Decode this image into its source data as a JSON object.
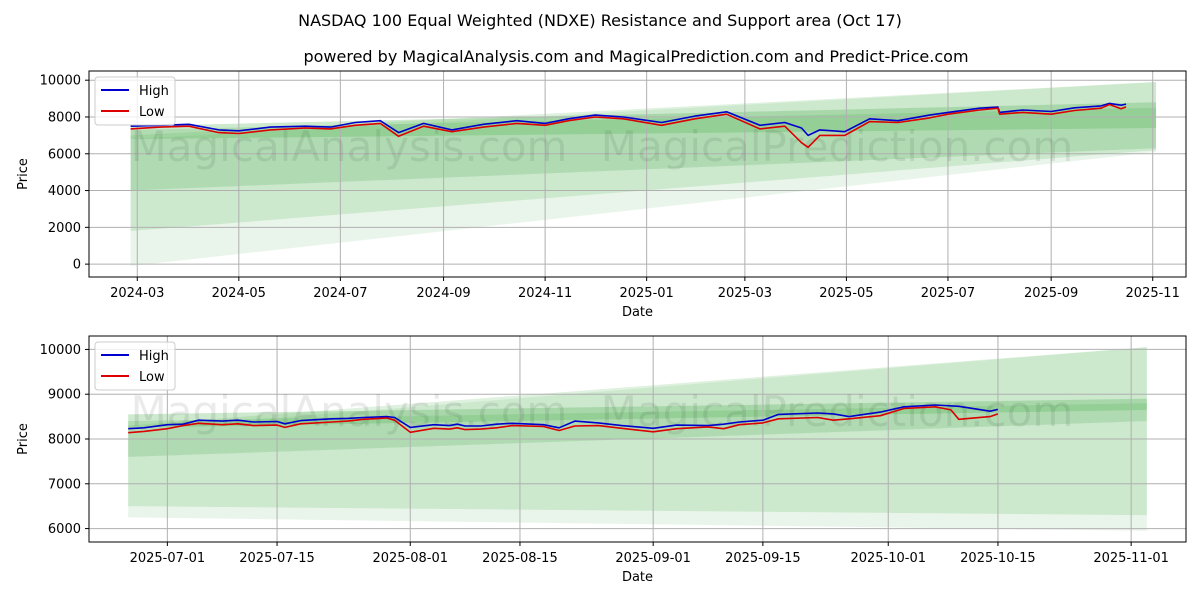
{
  "figure": {
    "title": "NASDAQ 100 Equal Weighted (NDXE) Resistance and Support area (Oct 17)",
    "subtitle": "powered by MagicalAnalysis.com and MagicalPrediction.com and Predict-Price.com",
    "watermarks": [
      "MagicalAnalysis.com",
      "MagicalPrediction.com"
    ]
  },
  "colors": {
    "high": "#0000cc",
    "low": "#dd0000",
    "band": "#4caf50",
    "grid": "#b0b0b0"
  },
  "chart_data": [
    {
      "type": "line",
      "xlabel": "Date",
      "ylabel": "Price",
      "xlim": [
        "2024-02-01",
        "2025-11-21"
      ],
      "ylim": [
        -700,
        10500
      ],
      "grid": true,
      "legend": "top-left",
      "x_ticks": [
        "2024-03",
        "2024-05",
        "2024-07",
        "2024-09",
        "2024-11",
        "2025-01",
        "2025-03",
        "2025-05",
        "2025-07",
        "2025-09",
        "2025-11"
      ],
      "y_ticks": [
        0,
        2000,
        4000,
        6000,
        8000,
        10000
      ],
      "series": [
        {
          "name": "High",
          "x": [
            "2024-02-26",
            "2024-03-15",
            "2024-04-01",
            "2024-04-19",
            "2024-05-01",
            "2024-05-20",
            "2024-06-10",
            "2024-06-25",
            "2024-07-10",
            "2024-07-25",
            "2024-08-05",
            "2024-08-20",
            "2024-09-06",
            "2024-09-25",
            "2024-10-15",
            "2024-11-01",
            "2024-11-15",
            "2024-12-01",
            "2024-12-18",
            "2025-01-10",
            "2025-01-30",
            "2025-02-18",
            "2025-03-10",
            "2025-03-25",
            "2025-04-04",
            "2025-04-08",
            "2025-04-15",
            "2025-04-30",
            "2025-05-15",
            "2025-06-01",
            "2025-06-20",
            "2025-07-01",
            "2025-07-20",
            "2025-07-31",
            "2025-08-01",
            "2025-08-15",
            "2025-09-01",
            "2025-09-15",
            "2025-10-01",
            "2025-10-06",
            "2025-10-13",
            "2025-10-16"
          ],
          "values": [
            7500,
            7550,
            7600,
            7300,
            7250,
            7450,
            7500,
            7450,
            7700,
            7800,
            7150,
            7650,
            7300,
            7600,
            7800,
            7650,
            7900,
            8100,
            8000,
            7700,
            8050,
            8280,
            7550,
            7700,
            7400,
            7000,
            7300,
            7200,
            7900,
            7800,
            8100,
            8250,
            8480,
            8540,
            8250,
            8380,
            8300,
            8500,
            8600,
            8740,
            8640,
            8700
          ]
        },
        {
          "name": "Low",
          "x": [
            "2024-02-26",
            "2024-03-15",
            "2024-04-01",
            "2024-04-19",
            "2024-05-01",
            "2024-05-20",
            "2024-06-10",
            "2024-06-25",
            "2024-07-10",
            "2024-07-25",
            "2024-08-05",
            "2024-08-20",
            "2024-09-06",
            "2024-09-25",
            "2024-10-15",
            "2024-11-01",
            "2024-11-15",
            "2024-12-01",
            "2024-12-18",
            "2025-01-10",
            "2025-01-30",
            "2025-02-18",
            "2025-03-10",
            "2025-03-25",
            "2025-04-04",
            "2025-04-08",
            "2025-04-15",
            "2025-04-30",
            "2025-05-15",
            "2025-06-01",
            "2025-06-20",
            "2025-07-01",
            "2025-07-20",
            "2025-07-31",
            "2025-08-01",
            "2025-08-15",
            "2025-09-01",
            "2025-09-15",
            "2025-10-01",
            "2025-10-06",
            "2025-10-13",
            "2025-10-16"
          ],
          "values": [
            7350,
            7450,
            7500,
            7150,
            7100,
            7300,
            7400,
            7350,
            7550,
            7650,
            6950,
            7500,
            7200,
            7450,
            7650,
            7550,
            7800,
            8000,
            7900,
            7550,
            7900,
            8150,
            7350,
            7500,
            6600,
            6350,
            7000,
            7000,
            7750,
            7700,
            7950,
            8150,
            8380,
            8480,
            8150,
            8250,
            8150,
            8350,
            8480,
            8680,
            8450,
            8550
          ]
        }
      ],
      "bands": [
        {
          "name": "band-1",
          "x": [
            "2024-02-26",
            "2025-11-03"
          ],
          "upper": [
            7500,
            8800
          ],
          "lower": [
            6800,
            7400
          ]
        },
        {
          "name": "band-2",
          "x": [
            "2024-02-26",
            "2025-11-03"
          ],
          "upper": [
            7300,
            8500
          ],
          "lower": [
            4000,
            6300
          ]
        },
        {
          "name": "band-3",
          "x": [
            "2024-02-26",
            "2025-11-03"
          ],
          "upper": [
            7000,
            9900
          ],
          "lower": [
            1800,
            6200
          ]
        },
        {
          "name": "band-4",
          "x": [
            "2024-02-26",
            "2025-11-03"
          ],
          "upper": [
            6800,
            9900
          ],
          "lower": [
            -100,
            6100
          ]
        }
      ]
    },
    {
      "type": "line",
      "xlabel": "Date",
      "ylabel": "Price",
      "xlim": [
        "2025-06-21",
        "2025-11-08"
      ],
      "ylim": [
        5700,
        10300
      ],
      "grid": true,
      "legend": "top-left",
      "x_ticks": [
        "2025-07-01",
        "2025-07-15",
        "2025-08-01",
        "2025-08-15",
        "2025-09-01",
        "2025-09-15",
        "2025-10-01",
        "2025-10-15",
        "2025-11-01"
      ],
      "y_ticks": [
        6000,
        7000,
        8000,
        9000,
        10000
      ],
      "series": [
        {
          "name": "High",
          "x": [
            "2025-06-26",
            "2025-06-28",
            "2025-07-01",
            "2025-07-03",
            "2025-07-05",
            "2025-07-08",
            "2025-07-10",
            "2025-07-12",
            "2025-07-15",
            "2025-07-16",
            "2025-07-18",
            "2025-07-22",
            "2025-07-24",
            "2025-07-26",
            "2025-07-29",
            "2025-07-30",
            "2025-08-01",
            "2025-08-04",
            "2025-08-06",
            "2025-08-07",
            "2025-08-08",
            "2025-08-10",
            "2025-08-12",
            "2025-08-14",
            "2025-08-18",
            "2025-08-20",
            "2025-08-22",
            "2025-08-25",
            "2025-08-28",
            "2025-09-01",
            "2025-09-04",
            "2025-09-08",
            "2025-09-10",
            "2025-09-12",
            "2025-09-15",
            "2025-09-17",
            "2025-09-22",
            "2025-09-24",
            "2025-09-26",
            "2025-09-30",
            "2025-10-03",
            "2025-10-07",
            "2025-10-10",
            "2025-10-14",
            "2025-10-15"
          ],
          "values": [
            8230,
            8250,
            8320,
            8330,
            8420,
            8400,
            8420,
            8380,
            8390,
            8340,
            8410,
            8450,
            8460,
            8480,
            8500,
            8480,
            8260,
            8320,
            8300,
            8330,
            8290,
            8290,
            8330,
            8350,
            8320,
            8250,
            8400,
            8360,
            8300,
            8240,
            8310,
            8300,
            8330,
            8380,
            8420,
            8550,
            8580,
            8560,
            8500,
            8600,
            8720,
            8760,
            8730,
            8620,
            8660
          ]
        },
        {
          "name": "Low",
          "x": [
            "2025-06-26",
            "2025-06-28",
            "2025-07-01",
            "2025-07-03",
            "2025-07-05",
            "2025-07-08",
            "2025-07-10",
            "2025-07-12",
            "2025-07-15",
            "2025-07-16",
            "2025-07-18",
            "2025-07-22",
            "2025-07-24",
            "2025-07-26",
            "2025-07-29",
            "2025-07-30",
            "2025-08-01",
            "2025-08-04",
            "2025-08-06",
            "2025-08-07",
            "2025-08-08",
            "2025-08-10",
            "2025-08-12",
            "2025-08-14",
            "2025-08-18",
            "2025-08-20",
            "2025-08-22",
            "2025-08-25",
            "2025-08-28",
            "2025-09-01",
            "2025-09-04",
            "2025-09-08",
            "2025-09-10",
            "2025-09-12",
            "2025-09-15",
            "2025-09-17",
            "2025-09-22",
            "2025-09-24",
            "2025-09-26",
            "2025-09-30",
            "2025-10-03",
            "2025-10-07",
            "2025-10-09",
            "2025-10-10",
            "2025-10-14",
            "2025-10-15"
          ],
          "values": [
            8140,
            8170,
            8230,
            8300,
            8350,
            8320,
            8340,
            8300,
            8310,
            8260,
            8340,
            8380,
            8400,
            8440,
            8470,
            8420,
            8150,
            8240,
            8220,
            8250,
            8210,
            8220,
            8250,
            8300,
            8280,
            8190,
            8290,
            8300,
            8240,
            8160,
            8230,
            8270,
            8230,
            8320,
            8360,
            8450,
            8480,
            8420,
            8450,
            8520,
            8680,
            8720,
            8650,
            8440,
            8500,
            8560
          ]
        }
      ],
      "bands": [
        {
          "name": "band-1",
          "x": [
            "2025-06-26",
            "2025-11-03"
          ],
          "upper": [
            8550,
            8900
          ],
          "lower": [
            8250,
            8650
          ]
        },
        {
          "name": "band-2",
          "x": [
            "2025-06-26",
            "2025-11-03"
          ],
          "upper": [
            8400,
            8800
          ],
          "lower": [
            7600,
            8400
          ]
        },
        {
          "name": "band-3",
          "x": [
            "2025-06-26",
            "2025-11-03"
          ],
          "upper": [
            8300,
            10050
          ],
          "lower": [
            6500,
            6300
          ]
        },
        {
          "name": "band-4",
          "x": [
            "2025-06-26",
            "2025-11-03"
          ],
          "upper": [
            8200,
            10050
          ],
          "lower": [
            6250,
            5950
          ]
        }
      ]
    }
  ]
}
